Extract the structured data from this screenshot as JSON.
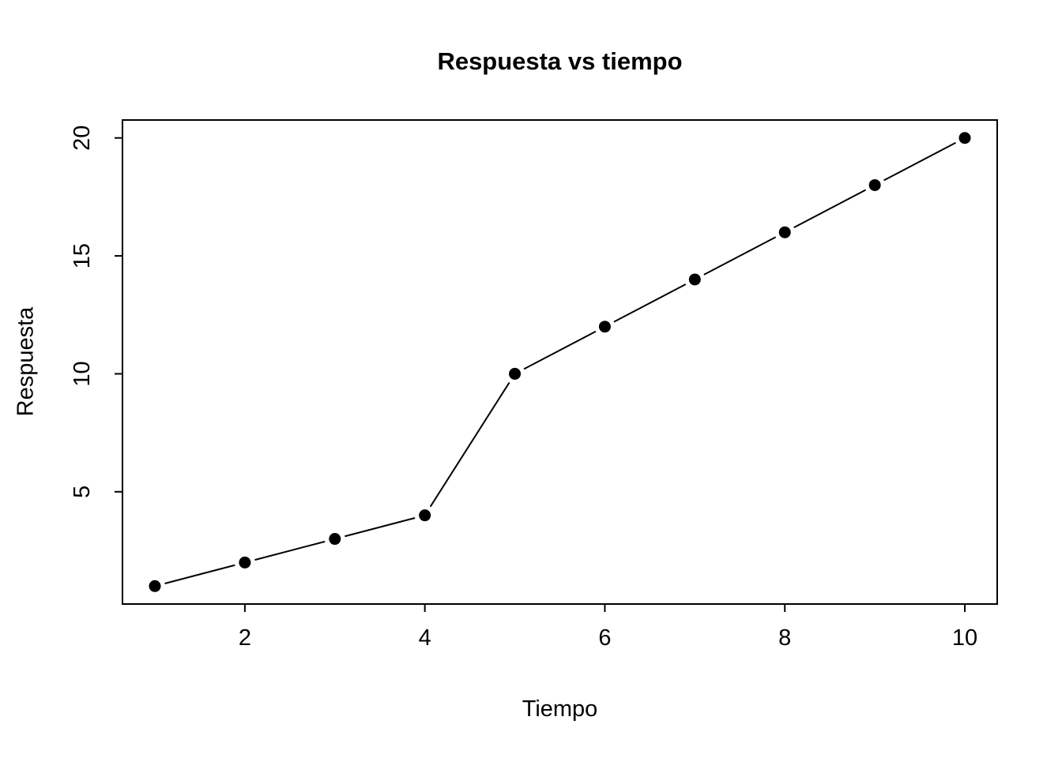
{
  "chart_data": {
    "type": "line",
    "title": "Respuesta vs tiempo",
    "xlabel": "Tiempo",
    "ylabel": "Respuesta",
    "x": [
      1,
      2,
      3,
      4,
      5,
      6,
      7,
      8,
      9,
      10
    ],
    "y": [
      1,
      2,
      3,
      4,
      10,
      12,
      14,
      16,
      18,
      20
    ],
    "xticks": [
      2,
      4,
      6,
      8,
      10
    ],
    "yticks": [
      5,
      10,
      15,
      20
    ],
    "xlim": [
      0.64,
      10.36
    ],
    "ylim": [
      0.24,
      20.76
    ],
    "grid": false,
    "legend": "none",
    "marker": "filled-circle",
    "line_style": "segments-with-gaps",
    "line_color": "#000000",
    "point_color": "#000000",
    "background": "#ffffff"
  }
}
